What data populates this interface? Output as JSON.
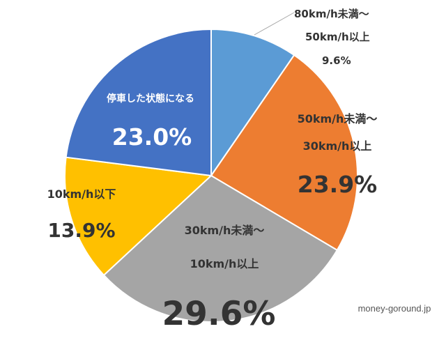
{
  "chart_data": {
    "type": "pie",
    "title": "",
    "slices": [
      {
        "label_lines": [
          "80km/h未満～",
          "50km/h以上"
        ],
        "value_text": "9.6%",
        "value": 9.6,
        "color": "#5B9BD5"
      },
      {
        "label_lines": [
          "50km/h未満～",
          "30km/h以上"
        ],
        "value_text": "23.9%",
        "value": 23.9,
        "color": "#ED7D31"
      },
      {
        "label_lines": [
          "30km/h未満～",
          "10km/h以上"
        ],
        "value_text": "29.6%",
        "value": 29.6,
        "color": "#A5A5A5"
      },
      {
        "label_lines": [
          "10km/h以下"
        ],
        "value_text": "13.9%",
        "value": 13.9,
        "color": "#FFC000"
      },
      {
        "label_lines": [
          "停車した状態になる"
        ],
        "value_text": "23.0%",
        "value": 23.0,
        "color": "#4472C4"
      }
    ]
  },
  "watermark": "money-goround.jp"
}
